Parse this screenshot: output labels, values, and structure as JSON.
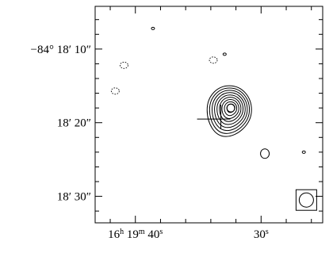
{
  "chart_data": {
    "type": "contour",
    "title": "",
    "xlabel": "",
    "ylabel": "",
    "x_axis": {
      "ticks": [
        {
          "parts": [
            "16",
            "h",
            " 19",
            "m",
            " 40",
            "s"
          ],
          "sups": [
            false,
            true,
            false,
            true,
            false,
            true
          ],
          "ra_sec": 40
        },
        {
          "parts": [
            "30",
            "s"
          ],
          "sups": [
            false,
            true
          ],
          "ra_sec": 30
        }
      ],
      "ra_range_sec": [
        43.2,
        25.1
      ],
      "minor_step_sec": 2
    },
    "y_axis": {
      "ticks": [
        {
          "text": "−84° 18′ 10″",
          "dec_arcsec": 10
        },
        {
          "text": "18′ 20″",
          "dec_arcsec": 20
        },
        {
          "text": "18′ 30″",
          "dec_arcsec": 30
        }
      ],
      "dec_range_arcsec": [
        4.2,
        33.6
      ],
      "minor_step_arcsec": 2
    },
    "source": {
      "center": {
        "ra_sec": 32.4,
        "dec_arcsec": 18.0
      },
      "contour_levels": 9,
      "peak_marker": "circle"
    },
    "cross_marker": {
      "ra_sec": 33.2,
      "dec_arcsec": 19.5
    },
    "beam": {
      "ra_sec": 26.4,
      "dec_arcsec": 30.5,
      "shape": "circle"
    },
    "minor_contours": [
      {
        "ra_sec": 38.6,
        "dec_arcsec": 7.2,
        "sign": "positive"
      },
      {
        "ra_sec": 33.8,
        "dec_arcsec": 11.5,
        "sign": "negative"
      },
      {
        "ra_sec": 32.9,
        "dec_arcsec": 10.7,
        "sign": "positive"
      },
      {
        "ra_sec": 40.9,
        "dec_arcsec": 12.2,
        "sign": "negative"
      },
      {
        "ra_sec": 41.6,
        "dec_arcsec": 15.7,
        "sign": "negative"
      },
      {
        "ra_sec": 29.7,
        "dec_arcsec": 24.2,
        "sign": "positive"
      },
      {
        "ra_sec": 26.6,
        "dec_arcsec": 24.0,
        "sign": "positive"
      }
    ],
    "grid": false,
    "legend": "none"
  }
}
